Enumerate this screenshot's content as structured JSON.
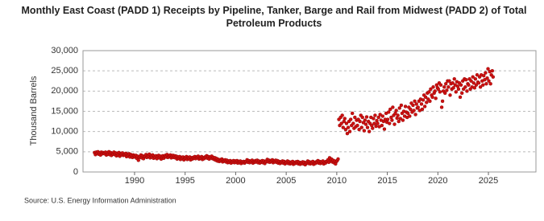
{
  "chart_data": {
    "type": "scatter",
    "title": "Monthly East Coast (PADD 1) Receipts by Pipeline, Tanker, Barge and Rail from Midwest (PADD 2) of Total Petroleum Products",
    "ylabel": "Thousand Barrels",
    "source": "Source: U.S. Energy Information Administration",
    "xlim": [
      1984.9,
      2029.7
    ],
    "xticks": [
      1990,
      1995,
      2000,
      2005,
      2010,
      2015,
      2020,
      2025
    ],
    "ylim": [
      0,
      30000
    ],
    "yticks": [
      0,
      {
        "value": 5000,
        "label": "5,000"
      },
      {
        "value": 10000,
        "label": "10,000"
      },
      {
        "value": 15000,
        "label": "15,000"
      },
      {
        "value": 20000,
        "label": "20,000"
      },
      {
        "value": 25000,
        "label": "25,000"
      },
      {
        "value": 30000,
        "label": "30,000"
      }
    ],
    "grid": true,
    "series": [
      {
        "color": "#cc1111",
        "x": [
          1986.04,
          1986.13,
          1986.21,
          1986.29,
          1986.38,
          1986.46,
          1986.54,
          1986.63,
          1986.71,
          1986.79,
          1986.88,
          1986.96,
          1987.04,
          1987.13,
          1987.21,
          1987.29,
          1987.38,
          1987.46,
          1987.54,
          1987.63,
          1987.71,
          1987.79,
          1987.88,
          1987.96,
          1988.04,
          1988.13,
          1988.21,
          1988.29,
          1988.38,
          1988.46,
          1988.54,
          1988.63,
          1988.71,
          1988.79,
          1988.88,
          1988.96,
          1989.04,
          1989.13,
          1989.21,
          1989.29,
          1989.38,
          1989.46,
          1989.54,
          1989.63,
          1989.71,
          1989.79,
          1989.88,
          1989.96,
          1990.04,
          1990.13,
          1990.21,
          1990.29,
          1990.38,
          1990.46,
          1990.54,
          1990.63,
          1990.71,
          1990.79,
          1990.88,
          1990.96,
          1991.04,
          1991.13,
          1991.21,
          1991.29,
          1991.38,
          1991.46,
          1991.54,
          1991.63,
          1991.71,
          1991.79,
          1991.88,
          1991.96,
          1992.04,
          1992.13,
          1992.21,
          1992.29,
          1992.38,
          1992.46,
          1992.54,
          1992.63,
          1992.71,
          1992.79,
          1992.88,
          1992.96,
          1993.04,
          1993.13,
          1993.21,
          1993.29,
          1993.38,
          1993.46,
          1993.54,
          1993.63,
          1993.71,
          1993.79,
          1993.88,
          1993.96,
          1994.04,
          1994.13,
          1994.21,
          1994.29,
          1994.38,
          1994.46,
          1994.54,
          1994.63,
          1994.71,
          1994.79,
          1994.88,
          1994.96,
          1995.04,
          1995.13,
          1995.21,
          1995.29,
          1995.38,
          1995.46,
          1995.54,
          1995.63,
          1995.71,
          1995.79,
          1995.88,
          1995.96,
          1996.04,
          1996.13,
          1996.21,
          1996.29,
          1996.38,
          1996.46,
          1996.54,
          1996.63,
          1996.71,
          1996.79,
          1996.88,
          1996.96,
          1997.04,
          1997.13,
          1997.21,
          1997.29,
          1997.38,
          1997.46,
          1997.54,
          1997.63,
          1997.71,
          1997.79,
          1997.88,
          1997.96,
          1998.04,
          1998.13,
          1998.21,
          1998.29,
          1998.38,
          1998.46,
          1998.54,
          1998.63,
          1998.71,
          1998.79,
          1998.88,
          1998.96,
          1999.04,
          1999.13,
          1999.21,
          1999.29,
          1999.38,
          1999.46,
          1999.54,
          1999.63,
          1999.71,
          1999.79,
          1999.88,
          1999.96,
          2000.04,
          2000.13,
          2000.21,
          2000.29,
          2000.38,
          2000.46,
          2000.54,
          2000.63,
          2000.71,
          2000.79,
          2000.88,
          2000.96,
          2001.04,
          2001.13,
          2001.21,
          2001.29,
          2001.38,
          2001.46,
          2001.54,
          2001.63,
          2001.71,
          2001.79,
          2001.88,
          2001.96,
          2002.04,
          2002.13,
          2002.21,
          2002.29,
          2002.38,
          2002.46,
          2002.54,
          2002.63,
          2002.71,
          2002.79,
          2002.88,
          2002.96,
          2003.04,
          2003.13,
          2003.21,
          2003.29,
          2003.38,
          2003.46,
          2003.54,
          2003.63,
          2003.71,
          2003.79,
          2003.88,
          2003.96,
          2004.04,
          2004.13,
          2004.21,
          2004.29,
          2004.38,
          2004.46,
          2004.54,
          2004.63,
          2004.71,
          2004.79,
          2004.88,
          2004.96,
          2005.04,
          2005.13,
          2005.21,
          2005.29,
          2005.38,
          2005.46,
          2005.54,
          2005.63,
          2005.71,
          2005.79,
          2005.88,
          2005.96,
          2006.04,
          2006.13,
          2006.21,
          2006.29,
          2006.38,
          2006.46,
          2006.54,
          2006.63,
          2006.71,
          2006.79,
          2006.88,
          2006.96,
          2007.04,
          2007.13,
          2007.21,
          2007.29,
          2007.38,
          2007.46,
          2007.54,
          2007.63,
          2007.71,
          2007.79,
          2007.88,
          2007.96,
          2008.04,
          2008.13,
          2008.21,
          2008.29,
          2008.38,
          2008.46,
          2008.54,
          2008.63,
          2008.71,
          2008.79,
          2008.88,
          2008.96,
          2009.04,
          2009.13,
          2009.21,
          2009.29,
          2009.38,
          2009.46,
          2009.54,
          2009.63,
          2009.71,
          2009.79,
          2009.88,
          2009.96,
          2010.04,
          2010.13,
          2010.21,
          2010.29,
          2010.38,
          2010.46,
          2010.54,
          2010.63,
          2010.71,
          2010.79,
          2010.88,
          2010.96,
          2011.04,
          2011.13,
          2011.21,
          2011.29,
          2011.38,
          2011.46,
          2011.54,
          2011.63,
          2011.71,
          2011.79,
          2011.88,
          2011.96,
          2012.04,
          2012.13,
          2012.21,
          2012.29,
          2012.38,
          2012.46,
          2012.54,
          2012.63,
          2012.71,
          2012.79,
          2012.88,
          2012.96,
          2013.04,
          2013.13,
          2013.21,
          2013.29,
          2013.38,
          2013.46,
          2013.54,
          2013.63,
          2013.71,
          2013.79,
          2013.88,
          2013.96,
          2014.04,
          2014.13,
          2014.21,
          2014.29,
          2014.38,
          2014.46,
          2014.54,
          2014.63,
          2014.71,
          2014.79,
          2014.88,
          2014.96,
          2015.04,
          2015.13,
          2015.21,
          2015.29,
          2015.38,
          2015.46,
          2015.54,
          2015.63,
          2015.71,
          2015.79,
          2015.88,
          2015.96,
          2016.04,
          2016.13,
          2016.21,
          2016.29,
          2016.38,
          2016.46,
          2016.54,
          2016.63,
          2016.71,
          2016.79,
          2016.88,
          2016.96,
          2017.04,
          2017.13,
          2017.21,
          2017.29,
          2017.38,
          2017.46,
          2017.54,
          2017.63,
          2017.71,
          2017.79,
          2017.88,
          2017.96,
          2018.04,
          2018.13,
          2018.21,
          2018.29,
          2018.38,
          2018.46,
          2018.54,
          2018.63,
          2018.71,
          2018.79,
          2018.88,
          2018.96,
          2019.04,
          2019.13,
          2019.21,
          2019.29,
          2019.38,
          2019.46,
          2019.54,
          2019.63,
          2019.71,
          2019.79,
          2019.88,
          2019.96,
          2020.04,
          2020.13,
          2020.21,
          2020.29,
          2020.38,
          2020.46,
          2020.54,
          2020.63,
          2020.71,
          2020.79,
          2020.88,
          2020.96,
          2021.04,
          2021.13,
          2021.21,
          2021.29,
          2021.38,
          2021.46,
          2021.54,
          2021.63,
          2021.71,
          2021.79,
          2021.88,
          2021.96,
          2022.04,
          2022.13,
          2022.21,
          2022.29,
          2022.38,
          2022.46,
          2022.54,
          2022.63,
          2022.71,
          2022.79,
          2022.88,
          2022.96,
          2023.04,
          2023.13,
          2023.21,
          2023.29,
          2023.38,
          2023.46,
          2023.54,
          2023.63,
          2023.71,
          2023.79,
          2023.88,
          2023.96,
          2024.04,
          2024.13,
          2024.21,
          2024.29,
          2024.38,
          2024.46,
          2024.54,
          2024.63,
          2024.71,
          2024.79,
          2024.88,
          2024.96,
          2025.04,
          2025.13,
          2025.21,
          2025.29,
          2025.38,
          2025.46
        ],
        "values": [
          4800,
          4300,
          4900,
          4600,
          5000,
          4400,
          4700,
          4200,
          4900,
          4500,
          4800,
          4600,
          4500,
          4900,
          4200,
          4700,
          4400,
          5000,
          4300,
          4800,
          4100,
          4600,
          4400,
          4900,
          4300,
          4700,
          4000,
          4600,
          4200,
          4800,
          3900,
          4500,
          4300,
          4700,
          4100,
          4400,
          4200,
          4600,
          3800,
          4400,
          4000,
          4500,
          3700,
          4300,
          4100,
          3600,
          4200,
          3900,
          3700,
          4100,
          3400,
          3900,
          2900,
          3600,
          3800,
          4200,
          3500,
          4000,
          3300,
          3800,
          3900,
          4300,
          3600,
          4100,
          3800,
          4400,
          3500,
          4000,
          3700,
          4200,
          3400,
          3900,
          3600,
          4000,
          3300,
          3800,
          4100,
          3500,
          3900,
          3200,
          3700,
          4000,
          3400,
          3800,
          4100,
          3700,
          4300,
          3600,
          4000,
          3800,
          4200,
          3500,
          3900,
          4100,
          3600,
          4000,
          3500,
          3900,
          3200,
          3700,
          3400,
          3800,
          3100,
          3600,
          3300,
          3700,
          3000,
          3500,
          3400,
          3800,
          3100,
          3600,
          3300,
          3700,
          3000,
          3500,
          3200,
          3600,
          3400,
          3800,
          3300,
          3700,
          3500,
          3900,
          3200,
          3600,
          3400,
          3800,
          3100,
          3500,
          3300,
          3700,
          3600,
          4000,
          3400,
          3800,
          3200,
          3700,
          3500,
          3900,
          3300,
          3600,
          3100,
          3500,
          2900,
          3300,
          2700,
          3100,
          2600,
          3000,
          2800,
          3200,
          2500,
          2900,
          2700,
          3000,
          2500,
          2900,
          2300,
          2700,
          2400,
          2800,
          2200,
          2600,
          2400,
          2800,
          2300,
          2700,
          2400,
          2800,
          2200,
          2600,
          2300,
          2700,
          2100,
          2500,
          2300,
          2600,
          2200,
          2500,
          2600,
          3000,
          2400,
          2800,
          2300,
          2700,
          2500,
          2900,
          2200,
          2600,
          2400,
          2800,
          2500,
          2900,
          2300,
          2700,
          2200,
          2600,
          2400,
          2800,
          2300,
          2700,
          2100,
          2500,
          2700,
          3100,
          2500,
          2900,
          2400,
          2800,
          2600,
          3000,
          2300,
          2700,
          2500,
          2900,
          2400,
          2800,
          2200,
          2600,
          2100,
          2500,
          2300,
          2700,
          2200,
          2600,
          2000,
          2400,
          2300,
          2700,
          2100,
          2500,
          2000,
          2400,
          2200,
          2600,
          1900,
          2300,
          2100,
          2500,
          2200,
          2600,
          2000,
          2400,
          1900,
          2300,
          2100,
          2500,
          2000,
          2400,
          1800,
          2200,
          2300,
          2700,
          2100,
          2500,
          2000,
          2400,
          2200,
          2600,
          1900,
          2300,
          2100,
          2500,
          2400,
          2800,
          2200,
          2600,
          2100,
          2500,
          2300,
          2700,
          2000,
          2400,
          2200,
          2600,
          2600,
          3000,
          2400,
          3500,
          2800,
          3200,
          2500,
          2900,
          2300,
          2700,
          2000,
          2600,
          2800,
          3200,
          13000,
          11500,
          13500,
          12000,
          14000,
          11000,
          12500,
          13200,
          10500,
          12000,
          9500,
          11000,
          12500,
          10000,
          13000,
          11500,
          14500,
          12000,
          10800,
          13500,
          11200,
          12800,
          11500,
          13000,
          10500,
          12500,
          14000,
          11000,
          13500,
          12200,
          10200,
          12800,
          11800,
          13600,
          11000,
          12500,
          10000,
          12000,
          13500,
          11500,
          10800,
          13200,
          12000,
          14000,
          11300,
          12700,
          12000,
          13500,
          11200,
          14200,
          12800,
          11500,
          13800,
          12500,
          10600,
          13000,
          14500,
          12300,
          13000,
          14800,
          12000,
          15500,
          13500,
          12800,
          16000,
          14000,
          11800,
          14500,
          15200,
          13300,
          14000,
          12500,
          15800,
          13200,
          16500,
          14500,
          12800,
          15000,
          13800,
          16200,
          14800,
          13500,
          14500,
          16000,
          13800,
          15500,
          17000,
          14800,
          16500,
          15200,
          17500,
          14200,
          16800,
          15800,
          16000,
          17500,
          15200,
          18000,
          16800,
          15500,
          17800,
          19000,
          16200,
          18500,
          17200,
          19500,
          18000,
          19800,
          17500,
          20500,
          19000,
          18500,
          21000,
          19500,
          20000,
          18200,
          21500,
          20800,
          20500,
          22000,
          19800,
          21500,
          16000,
          17500,
          20000,
          21000,
          19500,
          21800,
          20200,
          22500,
          21000,
          22500,
          19000,
          21800,
          20500,
          22000,
          20800,
          23000,
          21500,
          19800,
          22300,
          21200,
          20500,
          22000,
          18500,
          21500,
          19500,
          22500,
          20500,
          23000,
          21000,
          22800,
          20000,
          21800,
          21500,
          23000,
          20500,
          22500,
          21000,
          23500,
          22000,
          20800,
          23000,
          21500,
          24000,
          22200,
          22000,
          23500,
          21000,
          24000,
          22500,
          21500,
          23800,
          22800,
          24500,
          21800,
          23200,
          25500,
          22500,
          24800,
          21800,
          24000,
          25000,
          23500
        ]
      }
    ]
  }
}
